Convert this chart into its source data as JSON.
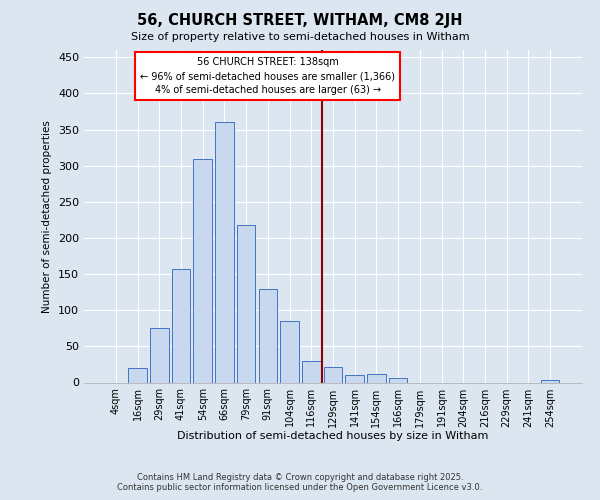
{
  "title": "56, CHURCH STREET, WITHAM, CM8 2JH",
  "subtitle": "Size of property relative to semi-detached houses in Witham",
  "xlabel": "Distribution of semi-detached houses by size in Witham",
  "ylabel": "Number of semi-detached properties",
  "bins": [
    "4sqm",
    "16sqm",
    "29sqm",
    "41sqm",
    "54sqm",
    "66sqm",
    "79sqm",
    "91sqm",
    "104sqm",
    "116sqm",
    "129sqm",
    "141sqm",
    "154sqm",
    "166sqm",
    "179sqm",
    "191sqm",
    "204sqm",
    "216sqm",
    "229sqm",
    "241sqm",
    "254sqm"
  ],
  "bar_heights": [
    0,
    20,
    75,
    157,
    309,
    360,
    218,
    130,
    85,
    30,
    22,
    11,
    12,
    6,
    0,
    0,
    0,
    0,
    0,
    0,
    3
  ],
  "bar_color": "#c8d9ef",
  "bar_edge_color": "#4472c4",
  "background_color": "#dce6f1",
  "grid_color": "#ffffff",
  "red_line_x": 9.5,
  "annotation_text_line1": "56 CHURCH STREET: 138sqm",
  "annotation_text_line2": "← 96% of semi-detached houses are smaller (1,366)",
  "annotation_text_line3": "4% of semi-detached houses are larger (63) →",
  "footer_line1": "Contains HM Land Registry data © Crown copyright and database right 2025.",
  "footer_line2": "Contains public sector information licensed under the Open Government Licence v3.0.",
  "ylim": [
    0,
    460
  ],
  "yticks": [
    0,
    50,
    100,
    150,
    200,
    250,
    300,
    350,
    400,
    450
  ]
}
